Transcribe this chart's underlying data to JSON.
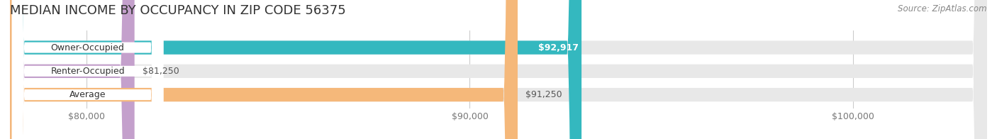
{
  "title": "MEDIAN INCOME BY OCCUPANCY IN ZIP CODE 56375",
  "source": "Source: ZipAtlas.com",
  "categories": [
    "Owner-Occupied",
    "Renter-Occupied",
    "Average"
  ],
  "values": [
    92917,
    81250,
    91250
  ],
  "bar_colors": [
    "#34b8bf",
    "#c4a0cc",
    "#f5b87a"
  ],
  "bar_labels": [
    "$92,917",
    "$81,250",
    "$91,250"
  ],
  "label_in_bar": [
    true,
    false,
    false
  ],
  "label_color_in": [
    "white",
    "#555555",
    "#555555"
  ],
  "xlim_data_min": 78000,
  "xlim_data_max": 103500,
  "xaxis_min": 78500,
  "xticks": [
    80000,
    90000,
    100000
  ],
  "xtick_labels": [
    "$80,000",
    "$90,000",
    "$100,000"
  ],
  "background_color": "#ffffff",
  "bar_bg_color": "#e8e8e8",
  "title_fontsize": 13,
  "source_fontsize": 8.5,
  "label_fontsize": 9,
  "tick_fontsize": 9,
  "bar_height": 0.58,
  "cat_label_fontsize": 9
}
